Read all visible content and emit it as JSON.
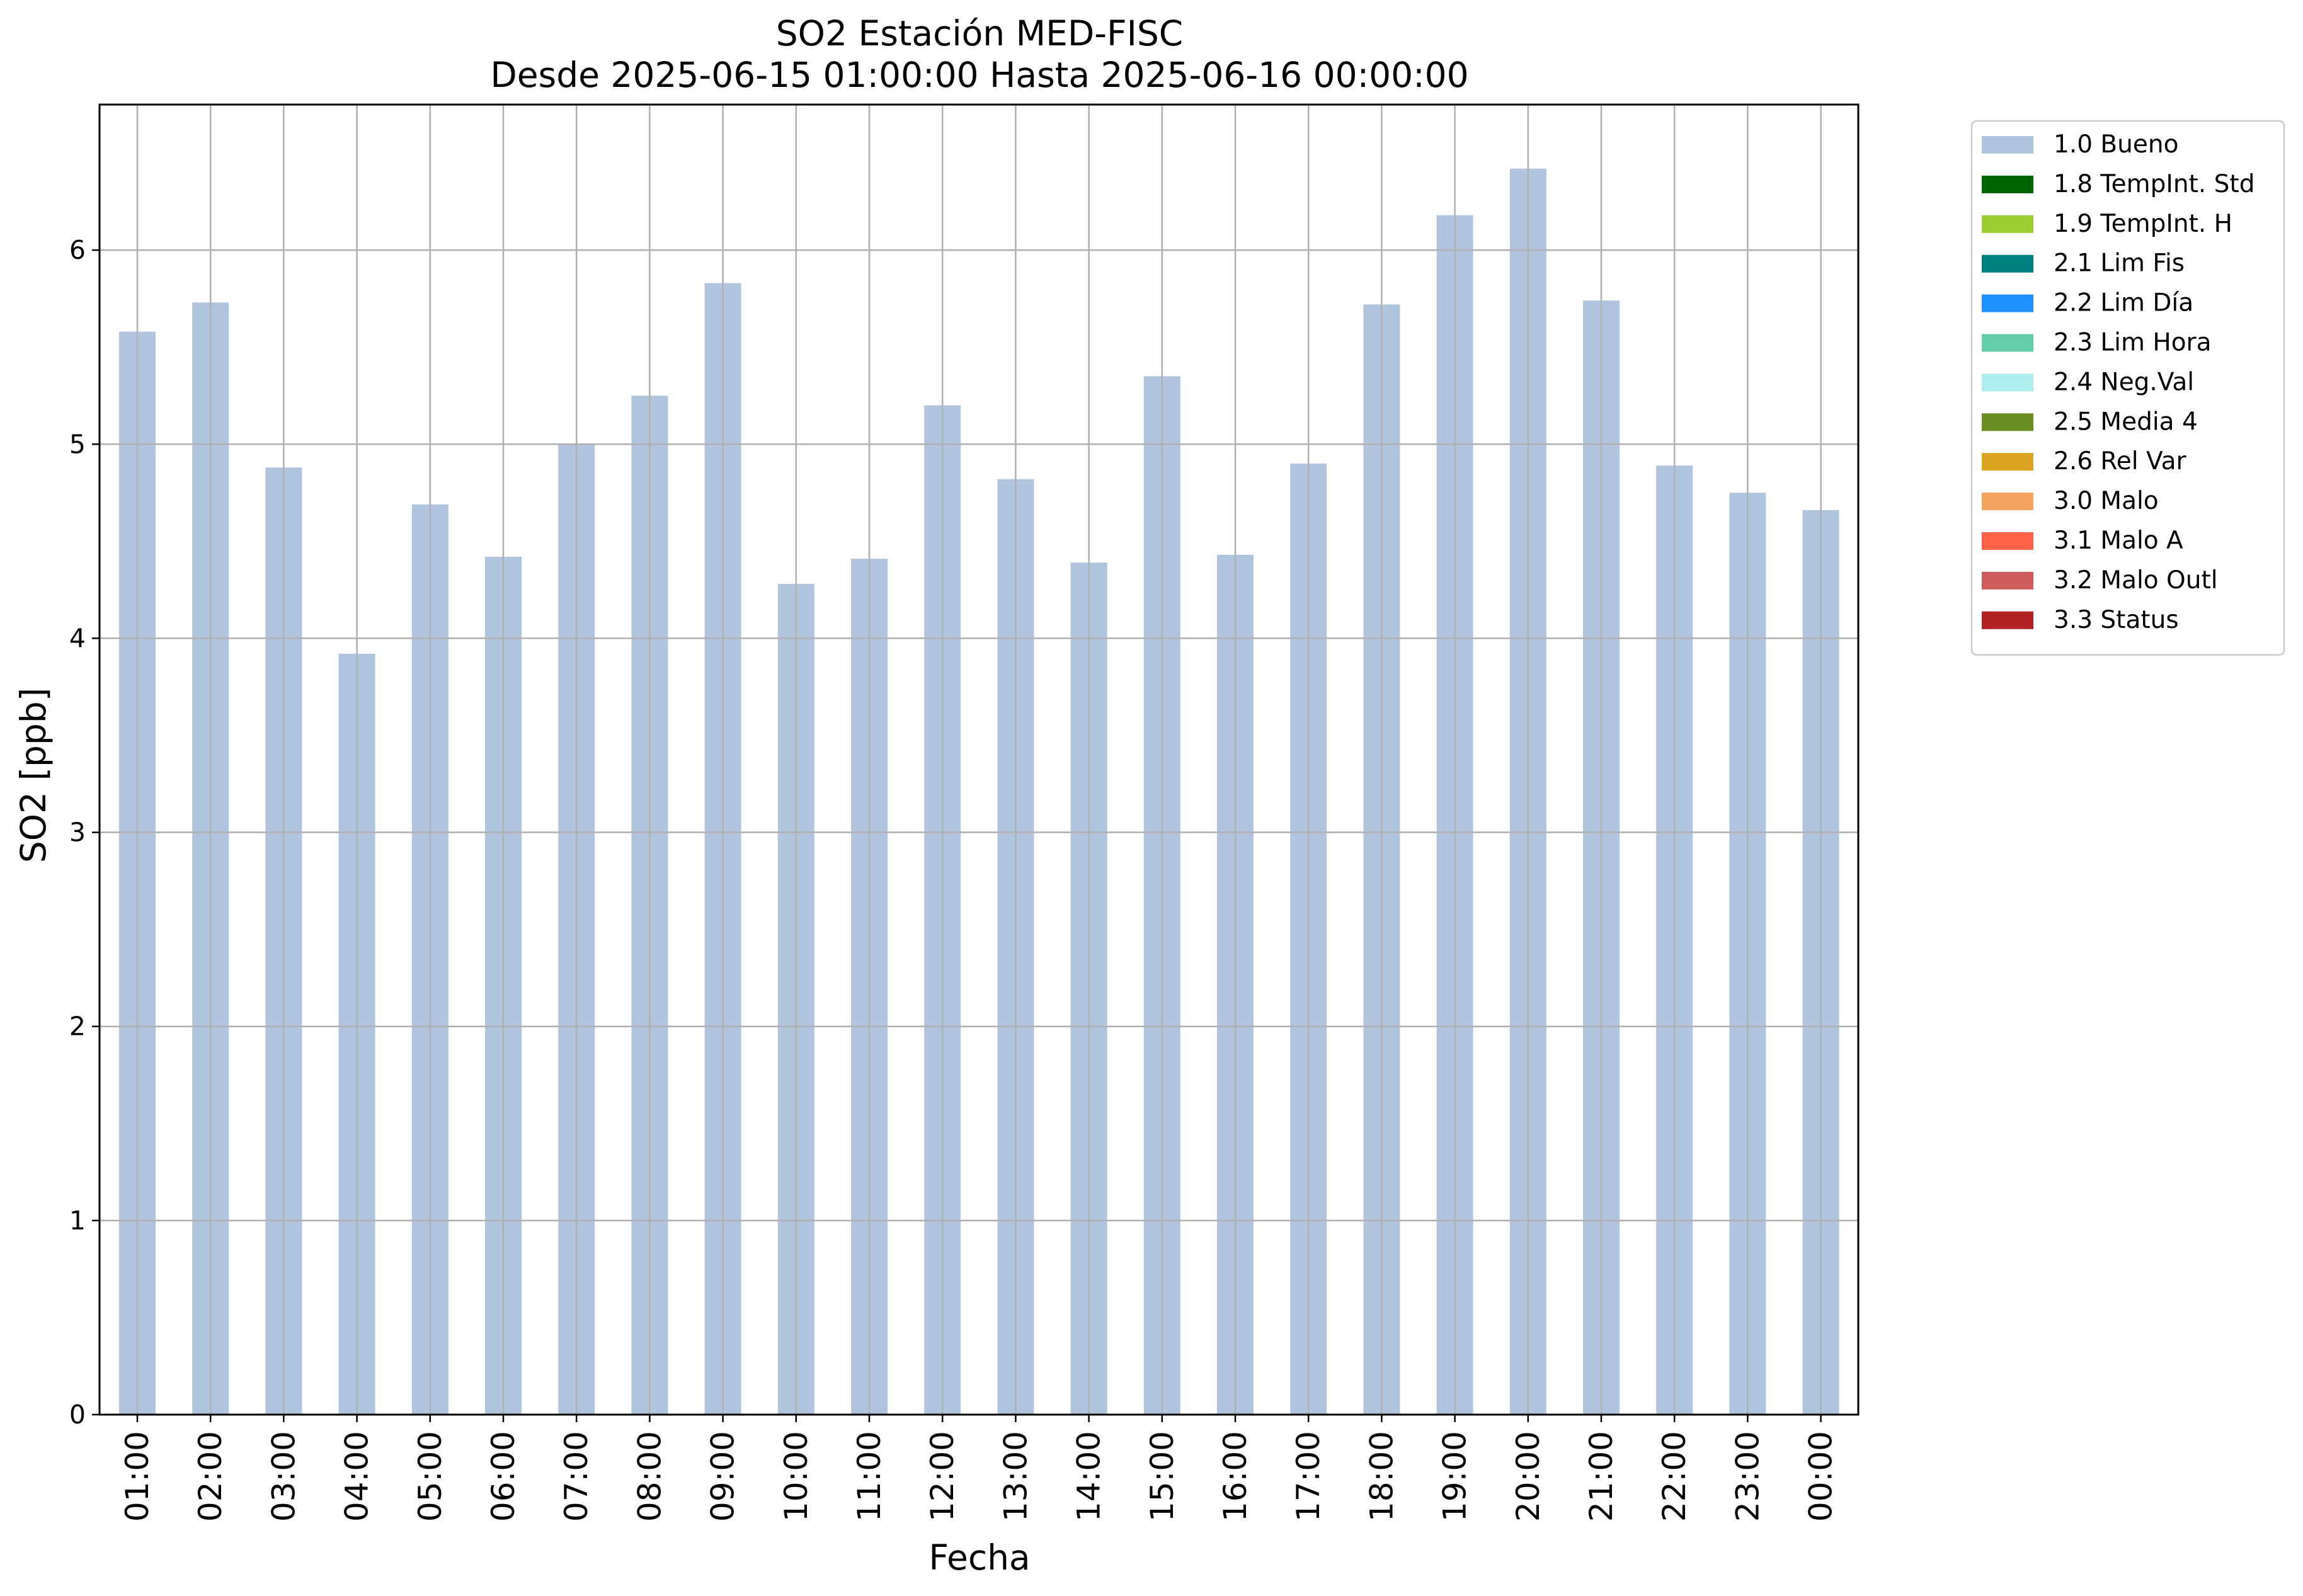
{
  "chart_data": {
    "type": "bar",
    "title": "SO2 Estación MED-FISC",
    "subtitle": "Desde 2025-06-15 01:00:00 Hasta 2025-06-16 00:00:00",
    "xlabel": "Fecha",
    "ylabel": "SO2 [ppb]",
    "ylim": [
      0,
      6.75
    ],
    "yticks": [
      "0",
      "1",
      "2",
      "3",
      "4",
      "5",
      "6"
    ],
    "grid": true,
    "legend_position": "outside-top-right",
    "categories": [
      "01:00",
      "02:00",
      "03:00",
      "04:00",
      "05:00",
      "06:00",
      "07:00",
      "08:00",
      "09:00",
      "10:00",
      "11:00",
      "12:00",
      "13:00",
      "14:00",
      "15:00",
      "16:00",
      "17:00",
      "18:00",
      "19:00",
      "20:00",
      "21:00",
      "22:00",
      "23:00",
      "00:00"
    ],
    "series": [
      {
        "name": "1.0 Bueno",
        "color": "#b0c4de",
        "values": [
          5.58,
          5.73,
          4.88,
          3.92,
          4.69,
          4.42,
          5.0,
          5.25,
          5.83,
          4.28,
          4.41,
          5.2,
          4.82,
          4.39,
          5.35,
          4.43,
          4.9,
          5.72,
          6.18,
          6.42,
          5.74,
          4.89,
          4.75,
          4.66
        ]
      }
    ],
    "legend": [
      {
        "label": "1.0 Bueno",
        "color": "#b0c4de"
      },
      {
        "label": "1.8 TempInt. Std",
        "color": "#006400"
      },
      {
        "label": "1.9 TempInt. H",
        "color": "#9acd32"
      },
      {
        "label": "2.1 Lim Fis",
        "color": "#008080"
      },
      {
        "label": "2.2 Lim Día",
        "color": "#1e90ff"
      },
      {
        "label": "2.3 Lim Hora",
        "color": "#66cdaa"
      },
      {
        "label": "2.4 Neg.Val",
        "color": "#afeeee"
      },
      {
        "label": "2.5 Media 4",
        "color": "#6b8e23"
      },
      {
        "label": "2.6 Rel Var",
        "color": "#daa520"
      },
      {
        "label": "3.0 Malo",
        "color": "#f4a460"
      },
      {
        "label": "3.1 Malo A",
        "color": "#ff6347"
      },
      {
        "label": "3.2 Malo Outl",
        "color": "#cd5c5c"
      },
      {
        "label": "3.3 Status",
        "color": "#b22222"
      }
    ]
  }
}
